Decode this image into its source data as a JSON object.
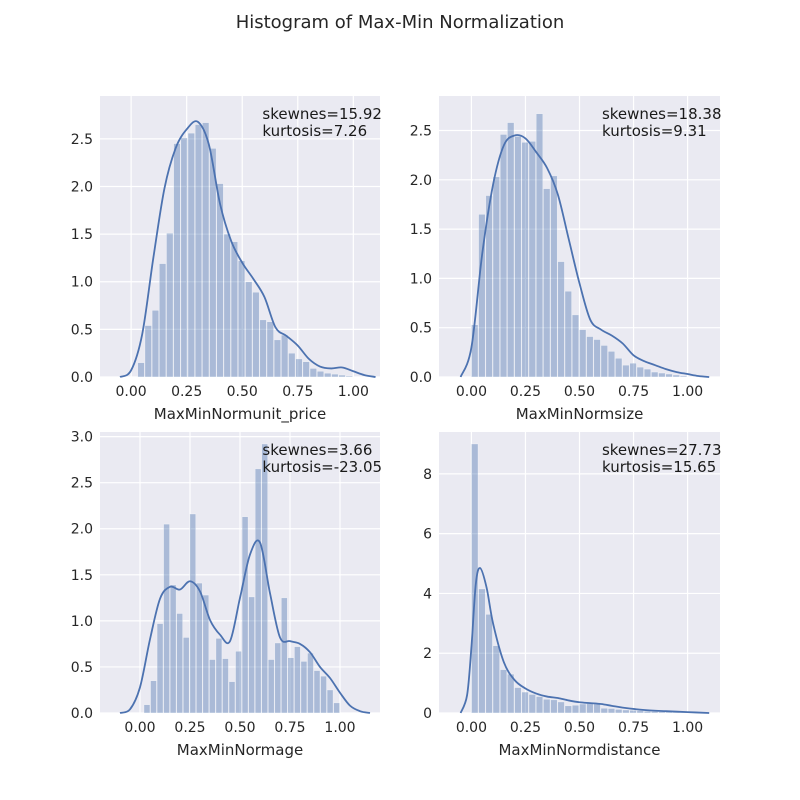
{
  "title": "Histogram of Max-Min Normalization",
  "colors": {
    "panel_bg": "#EAEAF2",
    "grid": "#FFFFFF",
    "bar": "#4C72B0",
    "kde": "#4C72B0"
  },
  "chart_data": [
    {
      "type": "histogram",
      "xlabel": "MaxMinNormunit_price",
      "xlim": [
        -0.14,
        1.12
      ],
      "ylim": [
        0,
        2.95
      ],
      "xticks": [
        0.0,
        0.25,
        0.5,
        0.75,
        1.0
      ],
      "xtick_labels": [
        "0.00",
        "0.25",
        "0.50",
        "0.75",
        "1.00"
      ],
      "yticks": [
        0.0,
        0.5,
        1.0,
        1.5,
        2.0,
        2.5
      ],
      "ytick_labels": [
        "0.0",
        "0.5",
        "1.0",
        "1.5",
        "2.0",
        "2.5"
      ],
      "grid": true,
      "bin_start": 0.03,
      "bin_width": 0.0323,
      "counts": [
        0.15,
        0.54,
        0.7,
        1.19,
        1.51,
        2.45,
        2.51,
        2.56,
        2.65,
        2.67,
        2.4,
        2.03,
        1.5,
        1.42,
        1.22,
        1.0,
        0.89,
        0.6,
        0.58,
        0.39,
        0.44,
        0.25,
        0.19,
        0.16,
        0.09,
        0.06,
        0.04,
        0.03,
        0.02,
        0.01
      ],
      "kde": {
        "x": [
          -0.05,
          0.0,
          0.05,
          0.1,
          0.15,
          0.2,
          0.25,
          0.3,
          0.35,
          0.4,
          0.45,
          0.5,
          0.55,
          0.6,
          0.65,
          0.7,
          0.75,
          0.8,
          0.85,
          0.9,
          0.95,
          1.0,
          1.05,
          1.1
        ],
        "y": [
          0.0,
          0.07,
          0.45,
          1.25,
          1.98,
          2.4,
          2.6,
          2.68,
          2.44,
          1.82,
          1.43,
          1.2,
          1.03,
          0.84,
          0.52,
          0.43,
          0.33,
          0.19,
          0.11,
          0.09,
          0.1,
          0.06,
          0.02,
          0.0
        ]
      },
      "annotation": [
        "skewnes=15.92",
        "kurtosis=7.26"
      ]
    },
    {
      "type": "histogram",
      "xlabel": "MaxMinNormsize",
      "xlim": [
        -0.15,
        1.15
      ],
      "ylim": [
        0,
        2.85
      ],
      "xticks": [
        0.0,
        0.25,
        0.5,
        0.75,
        1.0
      ],
      "xtick_labels": [
        "0.00",
        "0.25",
        "0.50",
        "0.75",
        "1.00"
      ],
      "yticks": [
        0.0,
        0.5,
        1.0,
        1.5,
        2.0,
        2.5
      ],
      "ytick_labels": [
        "0.0",
        "0.5",
        "1.0",
        "1.5",
        "2.0",
        "2.5"
      ],
      "grid": true,
      "bin_start": 0.0,
      "bin_width": 0.0333,
      "counts": [
        0.53,
        1.65,
        1.84,
        2.03,
        2.46,
        2.58,
        2.44,
        2.38,
        2.39,
        2.67,
        1.91,
        2.04,
        1.17,
        0.87,
        0.63,
        0.48,
        0.41,
        0.38,
        0.32,
        0.26,
        0.19,
        0.12,
        0.14,
        0.1,
        0.08,
        0.05,
        0.04,
        0.03,
        0.02,
        0.01
      ],
      "kde": {
        "x": [
          -0.05,
          0.0,
          0.05,
          0.1,
          0.15,
          0.2,
          0.25,
          0.3,
          0.35,
          0.4,
          0.45,
          0.5,
          0.55,
          0.6,
          0.65,
          0.7,
          0.75,
          0.8,
          0.85,
          0.9,
          0.95,
          1.0,
          1.05,
          1.1
        ],
        "y": [
          0.0,
          0.3,
          1.25,
          1.95,
          2.35,
          2.45,
          2.42,
          2.28,
          2.12,
          1.85,
          1.4,
          0.95,
          0.58,
          0.48,
          0.42,
          0.34,
          0.22,
          0.16,
          0.12,
          0.08,
          0.05,
          0.03,
          0.01,
          0.0
        ]
      },
      "annotation": [
        "skewnes=18.38",
        "kurtosis=9.31"
      ]
    },
    {
      "type": "histogram",
      "xlabel": "MaxMinNormage",
      "xlim": [
        -0.2,
        1.2
      ],
      "ylim": [
        0,
        3.05
      ],
      "xticks": [
        0.0,
        0.25,
        0.5,
        0.75,
        1.0
      ],
      "xtick_labels": [
        "0.00",
        "0.25",
        "0.50",
        "0.75",
        "1.00"
      ],
      "yticks": [
        0.0,
        0.5,
        1.0,
        1.5,
        2.0,
        2.5,
        3.0
      ],
      "ytick_labels": [
        "0.0",
        "0.5",
        "1.0",
        "1.5",
        "2.0",
        "2.5",
        "3.0"
      ],
      "grid": true,
      "bin_start": 0.02,
      "bin_width": 0.0327,
      "counts": [
        0.09,
        0.35,
        0.97,
        2.05,
        1.39,
        1.08,
        0.82,
        2.16,
        1.41,
        1.28,
        0.58,
        0.81,
        0.59,
        0.34,
        0.67,
        2.13,
        1.26,
        2.65,
        2.92,
        0.58,
        0.76,
        1.25,
        0.6,
        0.72,
        0.56,
        0.65,
        0.46,
        0.4,
        0.25,
        0.11
      ],
      "kde": {
        "x": [
          -0.1,
          -0.05,
          0.0,
          0.05,
          0.1,
          0.15,
          0.2,
          0.25,
          0.3,
          0.35,
          0.4,
          0.45,
          0.5,
          0.55,
          0.6,
          0.65,
          0.7,
          0.75,
          0.8,
          0.85,
          0.9,
          0.95,
          1.0,
          1.05,
          1.1,
          1.15
        ],
        "y": [
          0.0,
          0.04,
          0.28,
          0.8,
          1.24,
          1.37,
          1.34,
          1.43,
          1.32,
          1.01,
          0.85,
          0.78,
          1.25,
          1.72,
          1.85,
          1.3,
          0.82,
          0.78,
          0.75,
          0.66,
          0.5,
          0.38,
          0.22,
          0.08,
          0.02,
          0.0
        ]
      },
      "annotation": [
        "skewnes=3.66",
        "kurtosis=-23.05"
      ]
    },
    {
      "type": "histogram",
      "xlabel": "MaxMinNormdistance",
      "xlim": [
        -0.15,
        1.15
      ],
      "ylim": [
        0,
        9.4
      ],
      "xticks": [
        0.0,
        0.25,
        0.5,
        0.75,
        1.0
      ],
      "xtick_labels": [
        "0.00",
        "0.25",
        "0.50",
        "0.75",
        "1.00"
      ],
      "yticks": [
        0,
        2,
        4,
        6,
        8
      ],
      "ytick_labels": [
        "0",
        "2",
        "4",
        "6",
        "8"
      ],
      "grid": true,
      "bin_start": 0.0,
      "bin_width": 0.0333,
      "counts": [
        9.0,
        4.15,
        3.3,
        2.25,
        1.45,
        1.3,
        0.85,
        0.7,
        0.62,
        0.55,
        0.46,
        0.44,
        0.37,
        0.24,
        0.26,
        0.3,
        0.32,
        0.3,
        0.16,
        0.15,
        0.12,
        0.1,
        0.09,
        0.08,
        0.06,
        0.05,
        0.04,
        0.03,
        0.02,
        0.01
      ],
      "kde": {
        "x": [
          -0.05,
          -0.02,
          0.0,
          0.02,
          0.04,
          0.07,
          0.1,
          0.15,
          0.2,
          0.25,
          0.3,
          0.35,
          0.4,
          0.45,
          0.5,
          0.55,
          0.6,
          0.65,
          0.7,
          0.8,
          0.9,
          1.0,
          1.1
        ],
        "y": [
          0.0,
          0.6,
          2.2,
          4.3,
          4.85,
          4.2,
          3.0,
          1.7,
          1.1,
          0.82,
          0.65,
          0.55,
          0.5,
          0.42,
          0.36,
          0.33,
          0.3,
          0.24,
          0.18,
          0.1,
          0.06,
          0.03,
          0.0
        ]
      },
      "annotation": [
        "skewnes=27.73",
        "kurtosis=15.65"
      ]
    }
  ]
}
